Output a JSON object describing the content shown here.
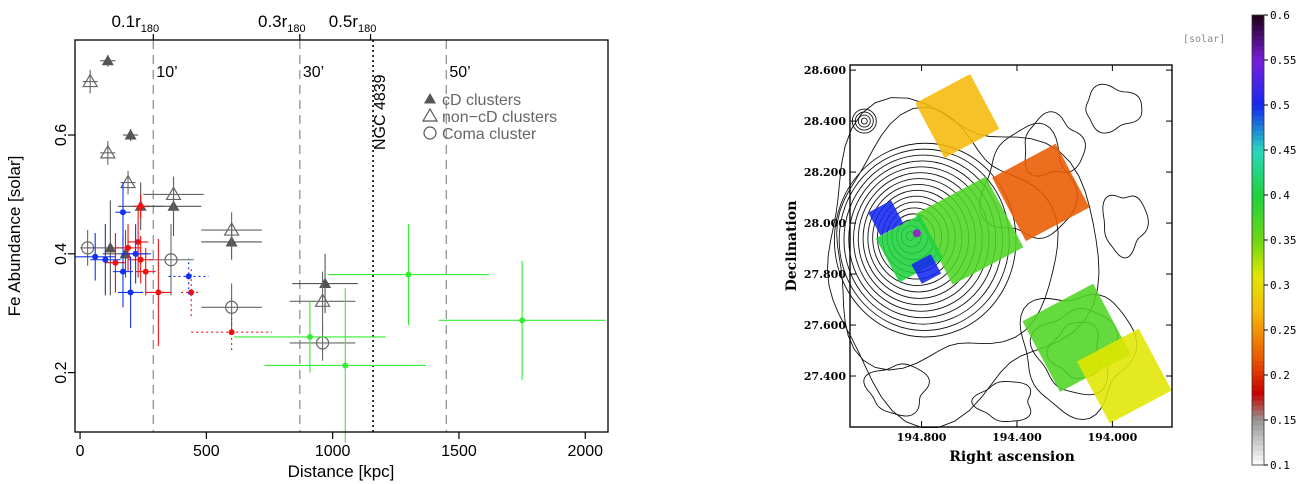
{
  "chart_data": [
    {
      "type": "scatter",
      "xlabel": "Distance [kpc]",
      "ylabel": "Fe Abundance [solar]",
      "xlim": [
        -20,
        2090
      ],
      "ylim": [
        0.1,
        0.76
      ],
      "xticks": [
        0,
        500,
        1000,
        1500,
        2000
      ],
      "xtick_labels": [
        "0",
        "500",
        "1000",
        "1500",
        "2000"
      ],
      "yticks": [
        0.2,
        0.4,
        0.6
      ],
      "ytick_labels": [
        "0.2",
        "0.4",
        "0.6"
      ],
      "top_axis": {
        "labels": [
          {
            "x": 290,
            "text": "0.1r",
            "sub": "180"
          },
          {
            "x": 870,
            "text": "0.3r",
            "sub": "180"
          },
          {
            "x": 1150,
            "text": "0.5r",
            "sub": "180"
          }
        ]
      },
      "vlines": [
        {
          "x": 290,
          "style": "dashed",
          "label": "10’"
        },
        {
          "x": 870,
          "style": "dashed",
          "label": "30’"
        },
        {
          "x": 1160,
          "style": "dotted",
          "label": "NGC 4839"
        },
        {
          "x": 1450,
          "style": "dashed",
          "label": "50’"
        }
      ],
      "legend": {
        "placement": "top-right",
        "entries": [
          {
            "marker": "filled-triangle",
            "label": "cD clusters"
          },
          {
            "marker": "open-triangle",
            "label": "non−cD clusters"
          },
          {
            "marker": "open-circle",
            "label": "Coma cluster"
          }
        ]
      },
      "colors": {
        "cd": "#555555",
        "noncd": "#666666",
        "coma": "#666666",
        "green": "#33ee33",
        "red": "#ee1111",
        "blue": "#1133ee"
      },
      "series": [
        {
          "name": "cD clusters",
          "marker": "filled-triangle",
          "points": [
            {
              "x": 110,
              "y": 0.725,
              "xerr": 30,
              "yerr": 0.01
            },
            {
              "x": 200,
              "y": 0.6,
              "xerr": 30,
              "yerr": 0.01
            },
            {
              "x": 370,
              "y": 0.48,
              "xerr": 110,
              "yerr": 0.05
            },
            {
              "x": 600,
              "y": 0.42,
              "xerr": 120,
              "yerr": 0.03
            },
            {
              "x": 970,
              "y": 0.35,
              "xerr": 130,
              "yerr": 0.05
            },
            {
              "x": 240,
              "y": 0.48,
              "xerr": 90,
              "yerr": 0.04
            },
            {
              "x": 180,
              "y": 0.4,
              "xerr": 90,
              "yerr": 0.04
            },
            {
              "x": 120,
              "y": 0.41,
              "xerr": 90,
              "yerr": 0.08
            }
          ]
        },
        {
          "name": "non−cD clusters",
          "marker": "open-triangle",
          "points": [
            {
              "x": 40,
              "y": 0.69,
              "xerr": 30,
              "yerr": 0.02
            },
            {
              "x": 110,
              "y": 0.57,
              "xerr": 30,
              "yerr": 0.02
            },
            {
              "x": 190,
              "y": 0.52,
              "xerr": 30,
              "yerr": 0.02
            },
            {
              "x": 370,
              "y": 0.5,
              "xerr": 120,
              "yerr": 0.03
            },
            {
              "x": 600,
              "y": 0.44,
              "xerr": 120,
              "yerr": 0.03
            },
            {
              "x": 960,
              "y": 0.32,
              "xerr": 130,
              "yerr": 0.05
            }
          ]
        },
        {
          "name": "Coma cluster",
          "marker": "open-circle",
          "points": [
            {
              "x": 30,
              "y": 0.41,
              "xerr": 30,
              "yerr": 0.03
            },
            {
              "x": 360,
              "y": 0.39,
              "xerr": 90,
              "yerr": 0.06
            },
            {
              "x": 600,
              "y": 0.31,
              "xerr": 120,
              "yerr": 0.04
            },
            {
              "x": 960,
              "y": 0.25,
              "xerr": 130,
              "yerr": 0.03
            }
          ]
        },
        {
          "marker": "filled-dot",
          "color": "green",
          "points": [
            {
              "x": 1300,
              "y": 0.365,
              "xerr": 320,
              "yerr": 0.085
            },
            {
              "x": 1750,
              "y": 0.288,
              "xerr": 330,
              "yerr": 0.1
            },
            {
              "x": 910,
              "y": 0.26,
              "xerr": 300,
              "yerr": 0.06
            },
            {
              "x": 1050,
              "y": 0.212,
              "xerr": 320,
              "yerr": 0.13
            }
          ]
        },
        {
          "marker": "filled-dot",
          "color": "red",
          "points": [
            {
              "x": 240,
              "y": 0.48,
              "xerr": 30,
              "yerr": 0.02
            },
            {
              "x": 230,
              "y": 0.42,
              "xerr": 40,
              "yerr": 0.06
            },
            {
              "x": 190,
              "y": 0.41,
              "xerr": 50,
              "yerr": 0.04
            },
            {
              "x": 240,
              "y": 0.39,
              "xerr": 50,
              "yerr": 0.04
            },
            {
              "x": 140,
              "y": 0.385,
              "xerr": 40,
              "yerr": 0.05
            },
            {
              "x": 260,
              "y": 0.37,
              "xerr": 40,
              "yerr": 0.04
            },
            {
              "x": 310,
              "y": 0.335,
              "xerr": 50,
              "yerr": 0.09
            },
            {
              "x": 440,
              "y": 0.335,
              "xerr": 40,
              "yerr": 0.04
            },
            {
              "x": 600,
              "y": 0.268,
              "xerr": 160,
              "yerr": 0.03
            }
          ]
        },
        {
          "marker": "filled-dot",
          "color": "blue",
          "points": [
            {
              "x": 170,
              "y": 0.47,
              "xerr": 30,
              "yerr": 0.05
            },
            {
              "x": 60,
              "y": 0.395,
              "xerr": 80,
              "yerr": 0.04
            },
            {
              "x": 100,
              "y": 0.39,
              "xerr": 60,
              "yerr": 0.06
            },
            {
              "x": 220,
              "y": 0.4,
              "xerr": 60,
              "yerr": 0.05
            },
            {
              "x": 170,
              "y": 0.37,
              "xerr": 40,
              "yerr": 0.06
            },
            {
              "x": 200,
              "y": 0.335,
              "xerr": 50,
              "yerr": 0.06
            },
            {
              "x": 430,
              "y": 0.362,
              "xerr": 80,
              "yerr": 0.03
            }
          ]
        }
      ]
    },
    {
      "type": "heatmap",
      "xlabel": "Right ascension",
      "ylabel": "Declination",
      "xlim": [
        195.1,
        193.75
      ],
      "ylim": [
        27.2,
        28.62
      ],
      "xticks": [
        194.8,
        194.4,
        194.0
      ],
      "xtick_labels": [
        "194.800",
        "194.400",
        "194.000"
      ],
      "yticks": [
        27.4,
        27.6,
        27.8,
        28.0,
        28.2,
        28.4,
        28.6
      ],
      "ytick_labels": [
        "27.400",
        "27.600",
        "27.800",
        "28.000",
        "28.200",
        "28.400",
        "28.600"
      ],
      "colorbar": {
        "title": "[solar]",
        "min": 0.1,
        "max": 0.6,
        "ticks": [
          0.1,
          0.15,
          0.2,
          0.25,
          0.3,
          0.35,
          0.4,
          0.45,
          0.5,
          0.55,
          0.6
        ],
        "tick_labels": [
          "0.1",
          "0.15",
          "0.2",
          "0.25",
          "0.3",
          "0.35",
          "0.4",
          "0.45",
          "0.5",
          "0.55",
          "0.6"
        ]
      },
      "regions": [
        {
          "ra": 194.65,
          "dec": 28.42,
          "value": 0.27
        },
        {
          "ra": 194.3,
          "dec": 28.12,
          "value": 0.22
        },
        {
          "ra": 194.6,
          "dec": 27.97,
          "value": 0.37
        },
        {
          "ra": 194.85,
          "dec": 27.9,
          "value": 0.4
        },
        {
          "ra": 194.95,
          "dec": 28.02,
          "value": 0.5
        },
        {
          "ra": 194.78,
          "dec": 27.82,
          "value": 0.5
        },
        {
          "ra": 194.15,
          "dec": 27.55,
          "value": 0.37
        },
        {
          "ra": 193.95,
          "dec": 27.4,
          "value": 0.31
        }
      ]
    }
  ]
}
